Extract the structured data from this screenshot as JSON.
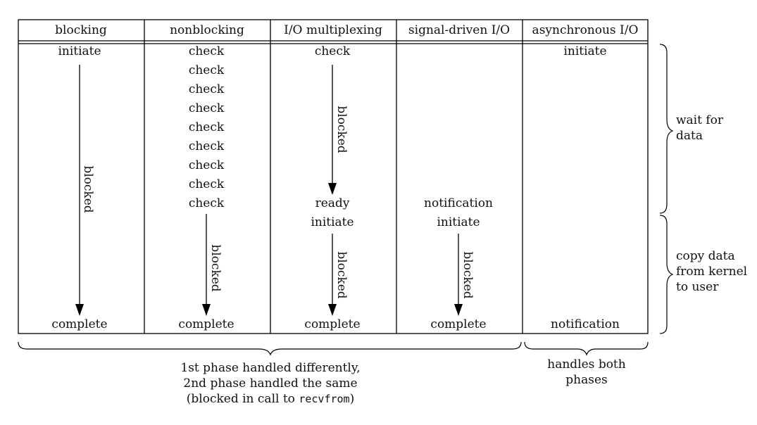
{
  "columns": [
    {
      "header": "blocking"
    },
    {
      "header": "nonblocking"
    },
    {
      "header": "I/O multiplexing"
    },
    {
      "header": "signal-driven I/O"
    },
    {
      "header": "asynchronous I/O"
    }
  ],
  "blocking": {
    "start": "initiate",
    "blocked": "blocked",
    "end": "complete"
  },
  "nonblocking": {
    "checks": [
      "check",
      "check",
      "check",
      "check",
      "check",
      "check",
      "check",
      "check",
      "check"
    ],
    "blocked": "blocked",
    "end": "complete"
  },
  "multiplexing": {
    "check": "check",
    "blocked1": "blocked",
    "ready": "ready",
    "initiate": "initiate",
    "blocked2": "blocked",
    "end": "complete"
  },
  "signal": {
    "notification": "notification",
    "initiate": "initiate",
    "blocked": "blocked",
    "end": "complete"
  },
  "async": {
    "initiate": "initiate",
    "notification": "notification"
  },
  "phases": {
    "wait": [
      "wait for",
      "data"
    ],
    "copy": [
      "copy data",
      "from kernel",
      "to user"
    ]
  },
  "footer": {
    "left": [
      "1st phase handled differently,",
      "2nd phase handled the same"
    ],
    "left_paren_open": "(blocked in call to ",
    "left_code": "recvfrom",
    "left_paren_close": ")",
    "right": [
      "handles both",
      "phases"
    ]
  }
}
